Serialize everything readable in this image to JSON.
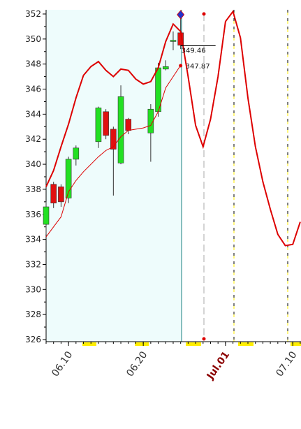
{
  "chart_data": {
    "type": "candlestick",
    "x": [
      7,
      8,
      9,
      10,
      11,
      14,
      15,
      16,
      17,
      18,
      21,
      22,
      23,
      24,
      25
    ],
    "open": [
      335.2,
      338.4,
      338.2,
      337.3,
      340.4,
      341.8,
      344.2,
      342.8,
      340.1,
      343.6,
      342.5,
      344.2,
      347.6,
      349.8,
      350.5
    ],
    "high": [
      337.0,
      338.6,
      338.4,
      340.6,
      341.5,
      344.6,
      344.4,
      343.0,
      346.3,
      343.7,
      344.8,
      348.1,
      348.3,
      350.6,
      351.9
    ],
    "low": [
      334.4,
      336.5,
      336.6,
      336.9,
      339.9,
      341.3,
      342.0,
      337.5,
      340.0,
      342.4,
      340.2,
      343.8,
      347.5,
      349.1,
      349.2
    ],
    "close": [
      336.6,
      336.9,
      337.0,
      340.4,
      341.3,
      344.5,
      342.3,
      341.2,
      345.4,
      342.7,
      344.4,
      347.7,
      347.8,
      349.9,
      349.5
    ],
    "up_color": "#22e022",
    "down_color": "#e01010",
    "series": [
      {
        "color": "#dd0000",
        "width": 2,
        "x": [
          7,
          8,
          9,
          10,
          11,
          12,
          13,
          14,
          15,
          16,
          17,
          18,
          19,
          20,
          21,
          22,
          23,
          24,
          25,
          26,
          27,
          28,
          29,
          30,
          31,
          32,
          33,
          34,
          35,
          36,
          37,
          38,
          39,
          40,
          41
        ],
        "values": [
          338.2,
          339.5,
          341.4,
          343.2,
          345.3,
          347.1,
          347.8,
          348.2,
          347.5,
          347.0,
          347.6,
          347.5,
          346.8,
          346.4,
          346.6,
          347.7,
          349.8,
          351.2,
          350.6,
          347.0,
          343.1,
          341.4,
          343.6,
          347.0,
          351.4,
          352.2,
          350.1,
          345.3,
          341.4,
          338.6,
          336.4,
          334.4,
          333.5,
          333.6,
          335.4
        ]
      },
      {
        "color": "#dd0000",
        "width": 1,
        "x": [
          7,
          8,
          9,
          10,
          11,
          12,
          13,
          14,
          15,
          16,
          17,
          18,
          19,
          20,
          21,
          22,
          23,
          24,
          25
        ],
        "values": [
          334.2,
          335.0,
          335.8,
          337.8,
          338.7,
          339.4,
          340.0,
          340.6,
          341.1,
          341.4,
          342.2,
          342.7,
          342.8,
          342.9,
          343.1,
          344.2,
          346.1,
          347.0,
          347.9
        ]
      }
    ],
    "annotations": [
      349.46,
      347.87
    ],
    "xlim": [
      7,
      41.1
    ],
    "ylim": [
      326,
      352
    ],
    "yticks": [
      326,
      328,
      330,
      332,
      334,
      336,
      338,
      340,
      342,
      344,
      346,
      348,
      350,
      352
    ],
    "xticks": [
      {
        "value": 10,
        "label": "06.10"
      },
      {
        "value": 20,
        "label": "06.20"
      },
      {
        "value": 31,
        "label": "Jul.01"
      },
      {
        "value": 40,
        "label": "07.10"
      }
    ]
  }
}
